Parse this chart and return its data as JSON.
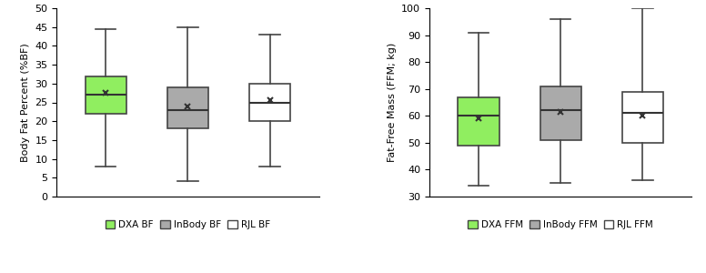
{
  "plot1": {
    "ylabel": "Body Fat Percent (%BF)",
    "ylim": [
      0,
      50
    ],
    "yticks": [
      0,
      5,
      10,
      15,
      20,
      25,
      30,
      35,
      40,
      45,
      50
    ],
    "boxes": [
      {
        "label": "DXA BF",
        "color": "#90EE60",
        "edge_color": "#444444",
        "whislo": 8,
        "q1": 22,
        "med": 27,
        "q3": 32,
        "whishi": 44.5,
        "mean": 27.5
      },
      {
        "label": "InBody BF",
        "color": "#AAAAAA",
        "edge_color": "#444444",
        "whislo": 4,
        "q1": 18,
        "med": 23,
        "q3": 29,
        "whishi": 45,
        "mean": 24
      },
      {
        "label": "RJL BF",
        "color": "#FFFFFF",
        "edge_color": "#444444",
        "whislo": 8,
        "q1": 20,
        "med": 25,
        "q3": 30,
        "whishi": 43,
        "mean": 25.5
      }
    ],
    "legend_labels": [
      "DXA BF",
      "InBody BF",
      "RJL BF"
    ],
    "legend_colors": [
      "#90EE60",
      "#AAAAAA",
      "#FFFFFF"
    ]
  },
  "plot2": {
    "ylabel": "Fat-Free Mass (FFM; kg)",
    "ylim": [
      30,
      100
    ],
    "yticks": [
      30,
      40,
      50,
      60,
      70,
      80,
      90,
      100
    ],
    "boxes": [
      {
        "label": "DXA FFM",
        "color": "#90EE60",
        "edge_color": "#444444",
        "whislo": 34,
        "q1": 49,
        "med": 60,
        "q3": 67,
        "whishi": 91,
        "mean": 59
      },
      {
        "label": "InBody FFM",
        "color": "#AAAAAA",
        "edge_color": "#444444",
        "whislo": 35,
        "q1": 51,
        "med": 62,
        "q3": 71,
        "whishi": 96,
        "mean": 61.5
      },
      {
        "label": "RJL FFM",
        "color": "#FFFFFF",
        "edge_color": "#444444",
        "whislo": 36,
        "q1": 50,
        "med": 61,
        "q3": 69,
        "whishi": 100,
        "mean": 60
      }
    ],
    "legend_labels": [
      "DXA FFM",
      "InBody FFM",
      "RJL FFM"
    ],
    "legend_colors": [
      "#90EE60",
      "#AAAAAA",
      "#FFFFFF"
    ]
  },
  "background_color": "#FFFFFF",
  "box_width": 0.5,
  "positions": [
    1,
    2,
    3
  ],
  "xlim": [
    0.4,
    3.6
  ],
  "mean_marker": "x",
  "mean_marker_size": 5,
  "mean_marker_color": "#333333",
  "median_color": "#333333",
  "whisker_color": "#444444",
  "cap_color": "#444444",
  "figsize": [
    7.76,
    3.0
  ],
  "dpi": 100
}
